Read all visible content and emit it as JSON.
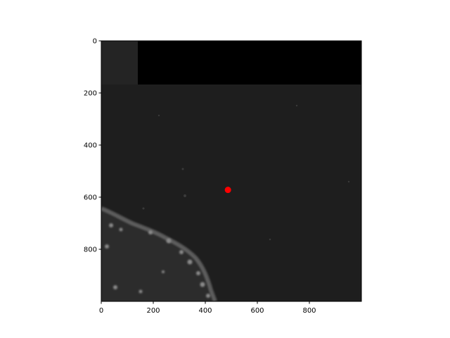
{
  "chart_data": {
    "type": "scatter",
    "title": "",
    "xlabel": "",
    "ylabel": "",
    "image_extent": {
      "x": [
        0,
        1000
      ],
      "y": [
        0,
        1000
      ]
    },
    "x_axis": {
      "ticks": [
        0,
        200,
        400,
        600,
        800
      ],
      "labels": [
        "0",
        "200",
        "400",
        "600",
        "800"
      ]
    },
    "y_axis": {
      "ticks": [
        0,
        200,
        400,
        600,
        800
      ],
      "labels": [
        "0",
        "200",
        "400",
        "600",
        "800"
      ],
      "inverted": true
    },
    "grid": false,
    "background_image": "grayscale microscopy image",
    "points": [
      {
        "x": 487,
        "y": 572,
        "color": "#ff0000"
      }
    ]
  },
  "colors": {
    "image_background": "#1e1e1e",
    "masked_region": "#000000",
    "tissue_region": "#2e2e2e",
    "marker": "#ff0000"
  }
}
